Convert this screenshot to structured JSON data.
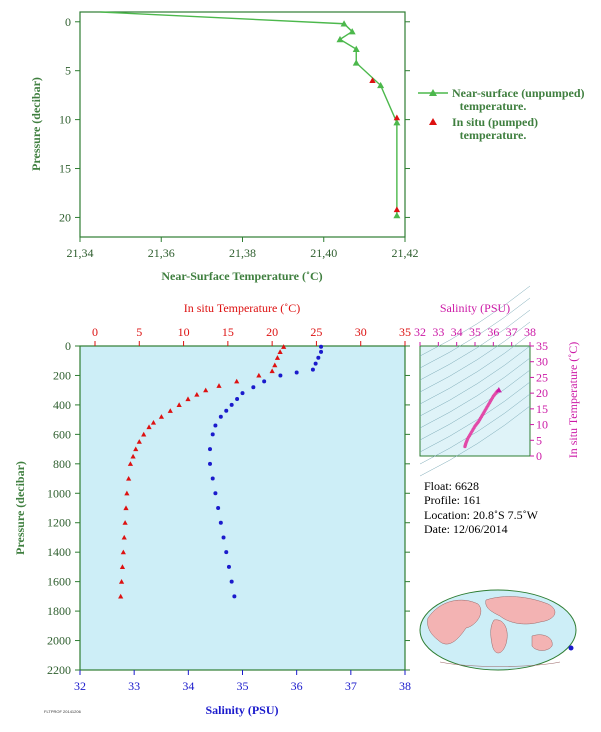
{
  "chart_data": [
    {
      "type": "line",
      "xlabel": "Near-Surface Temperature (˚C)",
      "ylabel": "Pressure (decibar)",
      "xlim": [
        21.34,
        21.42
      ],
      "ylim": [
        22,
        -1
      ],
      "xticks": [
        "21.34",
        "21.36",
        "21.38",
        "21.40",
        "21.42"
      ],
      "yticks": [
        "0",
        "5",
        "10",
        "15",
        "20"
      ],
      "legend": [
        {
          "name": "Near-surface (unpumped) temperature.",
          "line1": "Near-surface (unpumped)",
          "line2": "temperature.",
          "color": "#4cb84c"
        },
        {
          "name": "In situ (pumped) temperature.",
          "line1": "In situ (pumped)",
          "line2": "temperature.",
          "color": "#dd1111"
        }
      ],
      "series": [
        {
          "name": "Near-surface (unpumped) temperature.",
          "points": [
            [
              21.345,
              -1
            ],
            [
              21.405,
              0.2
            ],
            [
              21.407,
              1.0
            ],
            [
              21.404,
              1.8
            ],
            [
              21.408,
              2.8
            ],
            [
              21.408,
              4.2
            ],
            [
              21.414,
              6.5
            ],
            [
              21.418,
              10.3
            ],
            [
              21.418,
              19.8
            ]
          ]
        },
        {
          "name": "In situ (pumped) temperature.",
          "points": [
            [
              21.412,
              6.0
            ],
            [
              21.418,
              9.8
            ],
            [
              21.418,
              19.2
            ]
          ]
        }
      ]
    },
    {
      "type": "scatter",
      "ylabel": "Pressure (decibar)",
      "top_xlabel": "In situ Temperature (˚C)",
      "bottom_xlabel": "Salinity (PSU)",
      "temp_lim": [
        0,
        35
      ],
      "sal_lim": [
        32,
        38
      ],
      "ylim": [
        2200,
        0
      ],
      "temp_ticks": [
        "0",
        "5",
        "10",
        "15",
        "20",
        "25",
        "30",
        "35"
      ],
      "sal_ticks": [
        "32",
        "33",
        "34",
        "35",
        "36",
        "37",
        "38"
      ],
      "pressure_ticks": [
        "0",
        "200",
        "400",
        "600",
        "800",
        "1000",
        "1200",
        "1400",
        "1600",
        "1800",
        "2000",
        "2200"
      ],
      "temperature_profile": [
        [
          21.3,
          5
        ],
        [
          20.9,
          40
        ],
        [
          20.6,
          80
        ],
        [
          20.3,
          130
        ],
        [
          20.0,
          170
        ],
        [
          18.5,
          200
        ],
        [
          16.0,
          240
        ],
        [
          14.0,
          270
        ],
        [
          12.5,
          300
        ],
        [
          11.5,
          330
        ],
        [
          10.5,
          360
        ],
        [
          9.5,
          400
        ],
        [
          8.5,
          440
        ],
        [
          7.5,
          480
        ],
        [
          6.6,
          520
        ],
        [
          6.1,
          550
        ],
        [
          5.5,
          600
        ],
        [
          5.0,
          650
        ],
        [
          4.6,
          700
        ],
        [
          4.3,
          750
        ],
        [
          4.0,
          800
        ],
        [
          3.8,
          900
        ],
        [
          3.6,
          1000
        ],
        [
          3.5,
          1100
        ],
        [
          3.4,
          1200
        ],
        [
          3.3,
          1300
        ],
        [
          3.2,
          1400
        ],
        [
          3.1,
          1500
        ],
        [
          3.0,
          1600
        ],
        [
          2.9,
          1700
        ]
      ],
      "salinity_profile": [
        [
          36.45,
          5
        ],
        [
          36.45,
          40
        ],
        [
          36.4,
          80
        ],
        [
          36.35,
          120
        ],
        [
          36.3,
          160
        ],
        [
          36.0,
          180
        ],
        [
          35.7,
          200
        ],
        [
          35.4,
          240
        ],
        [
          35.2,
          280
        ],
        [
          35.0,
          320
        ],
        [
          34.9,
          360
        ],
        [
          34.8,
          400
        ],
        [
          34.7,
          440
        ],
        [
          34.6,
          480
        ],
        [
          34.5,
          540
        ],
        [
          34.45,
          600
        ],
        [
          34.4,
          700
        ],
        [
          34.4,
          800
        ],
        [
          34.45,
          900
        ],
        [
          34.5,
          1000
        ],
        [
          34.55,
          1100
        ],
        [
          34.6,
          1200
        ],
        [
          34.65,
          1300
        ],
        [
          34.7,
          1400
        ],
        [
          34.75,
          1500
        ],
        [
          34.8,
          1600
        ],
        [
          34.85,
          1700
        ]
      ]
    },
    {
      "type": "scatter",
      "xlabel": "Salinity (PSU)",
      "ylabel": "In situ Temperature (˚C)",
      "xlim": [
        32,
        38
      ],
      "ylim": [
        0,
        35
      ],
      "xticks": [
        "32",
        "33",
        "34",
        "35",
        "36",
        "37",
        "38"
      ],
      "yticks": [
        "0",
        "5",
        "10",
        "15",
        "20",
        "25",
        "30",
        "35"
      ],
      "points": [
        [
          34.45,
          3.0
        ],
        [
          34.5,
          4.0
        ],
        [
          34.6,
          5.5
        ],
        [
          34.8,
          7.5
        ],
        [
          35.0,
          9.5
        ],
        [
          35.2,
          11.0
        ],
        [
          35.4,
          13.0
        ],
        [
          35.6,
          15.0
        ],
        [
          35.8,
          17.0
        ],
        [
          36.0,
          19.0
        ],
        [
          36.2,
          20.5
        ],
        [
          36.3,
          21.0
        ]
      ]
    }
  ],
  "info": {
    "float": "Float:  6628",
    "profile": "Profile:  161",
    "location": "Location:  20.8˚S   7.5˚W",
    "date": "Date:  12/06/2014"
  },
  "footer_note": "FLTPROF 20141206",
  "colors": {
    "green": "#4cb84c",
    "red": "#dd1111",
    "blue": "#1a1acc",
    "magenta": "#cc1aa6",
    "panel_bg": "#cdeef7",
    "axis": "#2e7d32"
  }
}
